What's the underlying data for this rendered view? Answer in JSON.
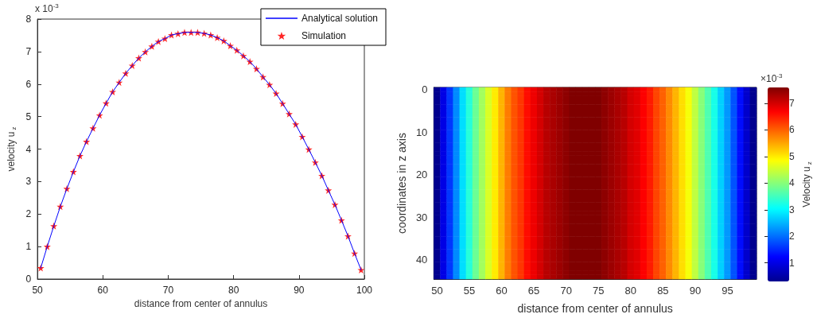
{
  "chart_data": [
    {
      "type": "line",
      "xlabel": "distance from center of annulus",
      "ylabel": "velocity u$_{z}$",
      "annotations": [
        "x 10$^{-3}$"
      ],
      "xlim": [
        50,
        100
      ],
      "xticks": [
        50,
        60,
        70,
        80,
        90,
        100
      ],
      "ylim": [
        0,
        8
      ],
      "yticks": [
        0,
        1,
        2,
        3,
        4,
        5,
        6,
        7,
        8
      ],
      "grid": false,
      "legend": "top right",
      "x": [
        50.5,
        51.5,
        52.5,
        53.5,
        54.5,
        55.5,
        56.5,
        57.5,
        58.5,
        59.5,
        60.5,
        61.5,
        62.5,
        63.5,
        64.5,
        65.5,
        66.5,
        67.5,
        68.5,
        69.5,
        70.5,
        71.5,
        72.5,
        73.5,
        74.5,
        75.5,
        76.5,
        77.5,
        78.5,
        79.5,
        80.5,
        81.5,
        82.5,
        83.5,
        84.5,
        85.5,
        86.5,
        87.5,
        88.5,
        89.5,
        90.5,
        91.5,
        92.5,
        93.5,
        94.5,
        95.5,
        96.5,
        97.5,
        98.5,
        99.5
      ],
      "series": [
        {
          "name": "Analytical solution",
          "type": "line",
          "color": "#0000ff",
          "line_style": "solid",
          "values": [
            0.34,
            1.0,
            1.63,
            2.23,
            2.78,
            3.3,
            3.79,
            4.23,
            4.64,
            5.04,
            5.41,
            5.76,
            6.05,
            6.33,
            6.57,
            6.8,
            6.99,
            7.16,
            7.31,
            7.4,
            7.51,
            7.55,
            7.59,
            7.59,
            7.59,
            7.56,
            7.51,
            7.43,
            7.33,
            7.18,
            7.04,
            6.87,
            6.69,
            6.47,
            6.22,
            5.98,
            5.71,
            5.4,
            5.08,
            4.76,
            4.38,
            3.99,
            3.59,
            3.18,
            2.73,
            2.29,
            1.81,
            1.32,
            0.79,
            0.28
          ]
        },
        {
          "name": "Simulation",
          "type": "scatter",
          "color": "#ff0000",
          "marker": "star",
          "values": [
            0.34,
            1.0,
            1.63,
            2.23,
            2.78,
            3.3,
            3.79,
            4.23,
            4.64,
            5.04,
            5.41,
            5.76,
            6.05,
            6.33,
            6.57,
            6.8,
            6.99,
            7.16,
            7.31,
            7.4,
            7.51,
            7.55,
            7.59,
            7.59,
            7.59,
            7.56,
            7.51,
            7.43,
            7.33,
            7.18,
            7.04,
            6.87,
            6.69,
            6.47,
            6.22,
            5.98,
            5.71,
            5.4,
            5.08,
            4.76,
            4.38,
            3.99,
            3.59,
            3.18,
            2.73,
            2.29,
            1.81,
            1.32,
            0.79,
            0.28
          ]
        }
      ]
    },
    {
      "type": "heatmap",
      "xlabel": "distance from center of annulus",
      "ylabel": "coordinates in z axis",
      "clabel": "Velocity u$_{z}$",
      "annotations": [
        "×10$^{-3}$"
      ],
      "clim": [
        0.3,
        7.6
      ],
      "cticks": [
        1,
        2,
        3,
        4,
        5,
        6,
        7
      ],
      "categories": [
        "50",
        null,
        null,
        null,
        null,
        "55",
        null,
        null,
        null,
        null,
        "60",
        null,
        null,
        null,
        null,
        "65",
        null,
        null,
        null,
        null,
        "70",
        null,
        null,
        null,
        null,
        "75",
        null,
        null,
        null,
        null,
        "80",
        null,
        null,
        null,
        null,
        "85",
        null,
        null,
        null,
        null,
        "90",
        null,
        null,
        null,
        null,
        "95",
        null,
        null,
        null,
        null
      ],
      "y_categories": [
        "0",
        null,
        null,
        null,
        null,
        null,
        null,
        null,
        null,
        null,
        "10",
        null,
        null,
        null,
        null,
        null,
        null,
        null,
        null,
        null,
        "20",
        null,
        null,
        null,
        null,
        null,
        null,
        null,
        null,
        null,
        "30",
        null,
        null,
        null,
        null,
        null,
        null,
        null,
        null,
        null,
        "40",
        null,
        null,
        null,
        null
      ],
      "cells": [
        [
          0.3,
          1.0,
          1.6,
          2.2,
          2.8,
          3.3,
          3.8,
          4.2,
          4.6,
          5.0,
          5.4,
          5.8,
          6.1,
          6.3,
          6.6,
          6.8,
          7.0,
          7.2,
          7.3,
          7.4,
          7.5,
          7.6,
          7.6,
          7.6,
          7.6,
          7.6,
          7.5,
          7.4,
          7.3,
          7.2,
          7.0,
          6.9,
          6.7,
          6.5,
          6.2,
          6.0,
          5.7,
          5.4,
          5.1,
          4.8,
          4.4,
          4.0,
          3.6,
          3.2,
          2.7,
          2.3,
          1.8,
          1.3,
          0.8,
          0.3
        ],
        [
          0.3,
          1.0,
          1.6,
          2.2,
          2.8,
          3.3,
          3.8,
          4.2,
          4.6,
          5.0,
          5.4,
          5.8,
          6.1,
          6.3,
          6.6,
          6.8,
          7.0,
          7.2,
          7.3,
          7.4,
          7.5,
          7.6,
          7.6,
          7.6,
          7.6,
          7.6,
          7.5,
          7.4,
          7.3,
          7.2,
          7.0,
          6.9,
          6.7,
          6.5,
          6.2,
          6.0,
          5.7,
          5.4,
          5.1,
          4.8,
          4.4,
          4.0,
          3.6,
          3.2,
          2.7,
          2.3,
          1.8,
          1.3,
          0.8,
          0.3
        ],
        [
          0.3,
          1.0,
          1.6,
          2.2,
          2.8,
          3.3,
          3.8,
          4.2,
          4.6,
          5.0,
          5.4,
          5.8,
          6.1,
          6.3,
          6.6,
          6.8,
          7.0,
          7.2,
          7.3,
          7.4,
          7.5,
          7.6,
          7.6,
          7.6,
          7.6,
          7.6,
          7.5,
          7.4,
          7.3,
          7.2,
          7.0,
          6.9,
          6.7,
          6.5,
          6.2,
          6.0,
          5.7,
          5.4,
          5.1,
          4.8,
          4.4,
          4.0,
          3.6,
          3.2,
          2.7,
          2.3,
          1.8,
          1.3,
          0.8,
          0.3
        ],
        [
          0.3,
          1.0,
          1.6,
          2.2,
          2.8,
          3.3,
          3.8,
          4.2,
          4.6,
          5.0,
          5.4,
          5.8,
          6.1,
          6.3,
          6.6,
          6.8,
          7.0,
          7.2,
          7.3,
          7.4,
          7.5,
          7.6,
          7.6,
          7.6,
          7.6,
          7.6,
          7.5,
          7.4,
          7.3,
          7.2,
          7.0,
          6.9,
          6.7,
          6.5,
          6.2,
          6.0,
          5.7,
          5.4,
          5.1,
          4.8,
          4.4,
          4.0,
          3.6,
          3.2,
          2.7,
          2.3,
          1.8,
          1.3,
          0.8,
          0.3
        ],
        [
          0.3,
          1.0,
          1.6,
          2.2,
          2.8,
          3.3,
          3.8,
          4.2,
          4.6,
          5.0,
          5.4,
          5.8,
          6.1,
          6.3,
          6.6,
          6.8,
          7.0,
          7.2,
          7.3,
          7.4,
          7.5,
          7.6,
          7.6,
          7.6,
          7.6,
          7.6,
          7.5,
          7.4,
          7.3,
          7.2,
          7.0,
          6.9,
          6.7,
          6.5,
          6.2,
          6.0,
          5.7,
          5.4,
          5.1,
          4.8,
          4.4,
          4.0,
          3.6,
          3.2,
          2.7,
          2.3,
          1.8,
          1.3,
          0.8,
          0.3
        ],
        [
          0.3,
          1.0,
          1.6,
          2.2,
          2.8,
          3.3,
          3.8,
          4.2,
          4.6,
          5.0,
          5.4,
          5.8,
          6.1,
          6.3,
          6.6,
          6.8,
          7.0,
          7.2,
          7.3,
          7.4,
          7.5,
          7.6,
          7.6,
          7.6,
          7.6,
          7.6,
          7.5,
          7.4,
          7.3,
          7.2,
          7.0,
          6.9,
          6.7,
          6.5,
          6.2,
          6.0,
          5.7,
          5.4,
          5.1,
          4.8,
          4.4,
          4.0,
          3.6,
          3.2,
          2.7,
          2.3,
          1.8,
          1.3,
          0.8,
          0.3
        ],
        [
          0.3,
          1.0,
          1.6,
          2.2,
          2.8,
          3.3,
          3.8,
          4.2,
          4.6,
          5.0,
          5.4,
          5.8,
          6.1,
          6.3,
          6.6,
          6.8,
          7.0,
          7.2,
          7.3,
          7.4,
          7.5,
          7.6,
          7.6,
          7.6,
          7.6,
          7.6,
          7.5,
          7.4,
          7.3,
          7.2,
          7.0,
          6.9,
          6.7,
          6.5,
          6.2,
          6.0,
          5.7,
          5.4,
          5.1,
          4.8,
          4.4,
          4.0,
          3.6,
          3.2,
          2.7,
          2.3,
          1.8,
          1.3,
          0.8,
          0.3
        ],
        [
          0.3,
          1.0,
          1.6,
          2.2,
          2.8,
          3.3,
          3.8,
          4.2,
          4.6,
          5.0,
          5.4,
          5.8,
          6.1,
          6.3,
          6.6,
          6.8,
          7.0,
          7.2,
          7.3,
          7.4,
          7.5,
          7.6,
          7.6,
          7.6,
          7.6,
          7.6,
          7.5,
          7.4,
          7.3,
          7.2,
          7.0,
          6.9,
          6.7,
          6.5,
          6.2,
          6.0,
          5.7,
          5.4,
          5.1,
          4.8,
          4.4,
          4.0,
          3.6,
          3.2,
          2.7,
          2.3,
          1.8,
          1.3,
          0.8,
          0.3
        ],
        [
          0.3,
          1.0,
          1.6,
          2.2,
          2.8,
          3.3,
          3.8,
          4.2,
          4.6,
          5.0,
          5.4,
          5.8,
          6.1,
          6.3,
          6.6,
          6.8,
          7.0,
          7.2,
          7.3,
          7.4,
          7.5,
          7.6,
          7.6,
          7.6,
          7.6,
          7.6,
          7.5,
          7.4,
          7.3,
          7.2,
          7.0,
          6.9,
          6.7,
          6.5,
          6.2,
          6.0,
          5.7,
          5.4,
          5.1,
          4.8,
          4.4,
          4.0,
          3.6,
          3.2,
          2.7,
          2.3,
          1.8,
          1.3,
          0.8,
          0.3
        ],
        [
          0.3,
          1.0,
          1.6,
          2.2,
          2.8,
          3.3,
          3.8,
          4.2,
          4.6,
          5.0,
          5.4,
          5.8,
          6.1,
          6.3,
          6.6,
          6.8,
          7.0,
          7.2,
          7.3,
          7.4,
          7.5,
          7.6,
          7.6,
          7.6,
          7.6,
          7.6,
          7.5,
          7.4,
          7.3,
          7.2,
          7.0,
          6.9,
          6.7,
          6.5,
          6.2,
          6.0,
          5.7,
          5.4,
          5.1,
          4.8,
          4.4,
          4.0,
          3.6,
          3.2,
          2.7,
          2.3,
          1.8,
          1.3,
          0.8,
          0.3
        ],
        [
          0.3,
          1.0,
          1.6,
          2.2,
          2.8,
          3.3,
          3.8,
          4.2,
          4.6,
          5.0,
          5.4,
          5.8,
          6.1,
          6.3,
          6.6,
          6.8,
          7.0,
          7.2,
          7.3,
          7.4,
          7.5,
          7.6,
          7.6,
          7.6,
          7.6,
          7.6,
          7.5,
          7.4,
          7.3,
          7.2,
          7.0,
          6.9,
          6.7,
          6.5,
          6.2,
          6.0,
          5.7,
          5.4,
          5.1,
          4.8,
          4.4,
          4.0,
          3.6,
          3.2,
          2.7,
          2.3,
          1.8,
          1.3,
          0.8,
          0.3
        ],
        [
          0.3,
          1.0,
          1.6,
          2.2,
          2.8,
          3.3,
          3.8,
          4.2,
          4.6,
          5.0,
          5.4,
          5.8,
          6.1,
          6.3,
          6.6,
          6.8,
          7.0,
          7.2,
          7.3,
          7.4,
          7.5,
          7.6,
          7.6,
          7.6,
          7.6,
          7.6,
          7.5,
          7.4,
          7.3,
          7.2,
          7.0,
          6.9,
          6.7,
          6.5,
          6.2,
          6.0,
          5.7,
          5.4,
          5.1,
          4.8,
          4.4,
          4.0,
          3.6,
          3.2,
          2.7,
          2.3,
          1.8,
          1.3,
          0.8,
          0.3
        ],
        [
          0.3,
          1.0,
          1.6,
          2.2,
          2.8,
          3.3,
          3.8,
          4.2,
          4.6,
          5.0,
          5.4,
          5.8,
          6.1,
          6.3,
          6.6,
          6.8,
          7.0,
          7.2,
          7.3,
          7.4,
          7.5,
          7.6,
          7.6,
          7.6,
          7.6,
          7.6,
          7.5,
          7.4,
          7.3,
          7.2,
          7.0,
          6.9,
          6.7,
          6.5,
          6.2,
          6.0,
          5.7,
          5.4,
          5.1,
          4.8,
          4.4,
          4.0,
          3.6,
          3.2,
          2.7,
          2.3,
          1.8,
          1.3,
          0.8,
          0.3
        ],
        [
          0.3,
          1.0,
          1.6,
          2.2,
          2.8,
          3.3,
          3.8,
          4.2,
          4.6,
          5.0,
          5.4,
          5.8,
          6.1,
          6.3,
          6.6,
          6.8,
          7.0,
          7.2,
          7.3,
          7.4,
          7.5,
          7.6,
          7.6,
          7.6,
          7.6,
          7.6,
          7.5,
          7.4,
          7.3,
          7.2,
          7.0,
          6.9,
          6.7,
          6.5,
          6.2,
          6.0,
          5.7,
          5.4,
          5.1,
          4.8,
          4.4,
          4.0,
          3.6,
          3.2,
          2.7,
          2.3,
          1.8,
          1.3,
          0.8,
          0.3
        ],
        [
          0.3,
          1.0,
          1.6,
          2.2,
          2.8,
          3.3,
          3.8,
          4.2,
          4.6,
          5.0,
          5.4,
          5.8,
          6.1,
          6.3,
          6.6,
          6.8,
          7.0,
          7.2,
          7.3,
          7.4,
          7.5,
          7.6,
          7.6,
          7.6,
          7.6,
          7.6,
          7.5,
          7.4,
          7.3,
          7.2,
          7.0,
          6.9,
          6.7,
          6.5,
          6.2,
          6.0,
          5.7,
          5.4,
          5.1,
          4.8,
          4.4,
          4.0,
          3.6,
          3.2,
          2.7,
          2.3,
          1.8,
          1.3,
          0.8,
          0.3
        ],
        [
          0.3,
          1.0,
          1.6,
          2.2,
          2.8,
          3.3,
          3.8,
          4.2,
          4.6,
          5.0,
          5.4,
          5.8,
          6.1,
          6.3,
          6.6,
          6.8,
          7.0,
          7.2,
          7.3,
          7.4,
          7.5,
          7.6,
          7.6,
          7.6,
          7.6,
          7.6,
          7.5,
          7.4,
          7.3,
          7.2,
          7.0,
          6.9,
          6.7,
          6.5,
          6.2,
          6.0,
          5.7,
          5.4,
          5.1,
          4.8,
          4.4,
          4.0,
          3.6,
          3.2,
          2.7,
          2.3,
          1.8,
          1.3,
          0.8,
          0.3
        ],
        [
          0.3,
          1.0,
          1.6,
          2.2,
          2.8,
          3.3,
          3.8,
          4.2,
          4.6,
          5.0,
          5.4,
          5.8,
          6.1,
          6.3,
          6.6,
          6.8,
          7.0,
          7.2,
          7.3,
          7.4,
          7.5,
          7.6,
          7.6,
          7.6,
          7.6,
          7.6,
          7.5,
          7.4,
          7.3,
          7.2,
          7.0,
          6.9,
          6.7,
          6.5,
          6.2,
          6.0,
          5.7,
          5.4,
          5.1,
          4.8,
          4.4,
          4.0,
          3.6,
          3.2,
          2.7,
          2.3,
          1.8,
          1.3,
          0.8,
          0.3
        ],
        [
          0.3,
          1.0,
          1.6,
          2.2,
          2.8,
          3.3,
          3.8,
          4.2,
          4.6,
          5.0,
          5.4,
          5.8,
          6.1,
          6.3,
          6.6,
          6.8,
          7.0,
          7.2,
          7.3,
          7.4,
          7.5,
          7.6,
          7.6,
          7.6,
          7.6,
          7.6,
          7.5,
          7.4,
          7.3,
          7.2,
          7.0,
          6.9,
          6.7,
          6.5,
          6.2,
          6.0,
          5.7,
          5.4,
          5.1,
          4.8,
          4.4,
          4.0,
          3.6,
          3.2,
          2.7,
          2.3,
          1.8,
          1.3,
          0.8,
          0.3
        ],
        [
          0.3,
          1.0,
          1.6,
          2.2,
          2.8,
          3.3,
          3.8,
          4.2,
          4.6,
          5.0,
          5.4,
          5.8,
          6.1,
          6.3,
          6.6,
          6.8,
          7.0,
          7.2,
          7.3,
          7.4,
          7.5,
          7.6,
          7.6,
          7.6,
          7.6,
          7.6,
          7.5,
          7.4,
          7.3,
          7.2,
          7.0,
          6.9,
          6.7,
          6.5,
          6.2,
          6.0,
          5.7,
          5.4,
          5.1,
          4.8,
          4.4,
          4.0,
          3.6,
          3.2,
          2.7,
          2.3,
          1.8,
          1.3,
          0.8,
          0.3
        ],
        [
          0.3,
          1.0,
          1.6,
          2.2,
          2.8,
          3.3,
          3.8,
          4.2,
          4.6,
          5.0,
          5.4,
          5.8,
          6.1,
          6.3,
          6.6,
          6.8,
          7.0,
          7.2,
          7.3,
          7.4,
          7.5,
          7.6,
          7.6,
          7.6,
          7.6,
          7.6,
          7.5,
          7.4,
          7.3,
          7.2,
          7.0,
          6.9,
          6.7,
          6.5,
          6.2,
          6.0,
          5.7,
          5.4,
          5.1,
          4.8,
          4.4,
          4.0,
          3.6,
          3.2,
          2.7,
          2.3,
          1.8,
          1.3,
          0.8,
          0.3
        ],
        [
          0.3,
          1.0,
          1.6,
          2.2,
          2.8,
          3.3,
          3.8,
          4.2,
          4.6,
          5.0,
          5.4,
          5.8,
          6.1,
          6.3,
          6.6,
          6.8,
          7.0,
          7.2,
          7.3,
          7.4,
          7.5,
          7.6,
          7.6,
          7.6,
          7.6,
          7.6,
          7.5,
          7.4,
          7.3,
          7.2,
          7.0,
          6.9,
          6.7,
          6.5,
          6.2,
          6.0,
          5.7,
          5.4,
          5.1,
          4.8,
          4.4,
          4.0,
          3.6,
          3.2,
          2.7,
          2.3,
          1.8,
          1.3,
          0.8,
          0.3
        ],
        [
          0.3,
          1.0,
          1.6,
          2.2,
          2.8,
          3.3,
          3.8,
          4.2,
          4.6,
          5.0,
          5.4,
          5.8,
          6.1,
          6.3,
          6.6,
          6.8,
          7.0,
          7.2,
          7.3,
          7.4,
          7.5,
          7.6,
          7.6,
          7.6,
          7.6,
          7.6,
          7.5,
          7.4,
          7.3,
          7.2,
          7.0,
          6.9,
          6.7,
          6.5,
          6.2,
          6.0,
          5.7,
          5.4,
          5.1,
          4.8,
          4.4,
          4.0,
          3.6,
          3.2,
          2.7,
          2.3,
          1.8,
          1.3,
          0.8,
          0.3
        ],
        [
          0.3,
          1.0,
          1.6,
          2.2,
          2.8,
          3.3,
          3.8,
          4.2,
          4.6,
          5.0,
          5.4,
          5.8,
          6.1,
          6.3,
          6.6,
          6.8,
          7.0,
          7.2,
          7.3,
          7.4,
          7.5,
          7.6,
          7.6,
          7.6,
          7.6,
          7.6,
          7.5,
          7.4,
          7.3,
          7.2,
          7.0,
          6.9,
          6.7,
          6.5,
          6.2,
          6.0,
          5.7,
          5.4,
          5.1,
          4.8,
          4.4,
          4.0,
          3.6,
          3.2,
          2.7,
          2.3,
          1.8,
          1.3,
          0.8,
          0.3
        ],
        [
          0.3,
          1.0,
          1.6,
          2.2,
          2.8,
          3.3,
          3.8,
          4.2,
          4.6,
          5.0,
          5.4,
          5.8,
          6.1,
          6.3,
          6.6,
          6.8,
          7.0,
          7.2,
          7.3,
          7.4,
          7.5,
          7.6,
          7.6,
          7.6,
          7.6,
          7.6,
          7.5,
          7.4,
          7.3,
          7.2,
          7.0,
          6.9,
          6.7,
          6.5,
          6.2,
          6.0,
          5.7,
          5.4,
          5.1,
          4.8,
          4.4,
          4.0,
          3.6,
          3.2,
          2.7,
          2.3,
          1.8,
          1.3,
          0.8,
          0.3
        ],
        [
          0.3,
          1.0,
          1.6,
          2.2,
          2.8,
          3.3,
          3.8,
          4.2,
          4.6,
          5.0,
          5.4,
          5.8,
          6.1,
          6.3,
          6.6,
          6.8,
          7.0,
          7.2,
          7.3,
          7.4,
          7.5,
          7.6,
          7.6,
          7.6,
          7.6,
          7.6,
          7.5,
          7.4,
          7.3,
          7.2,
          7.0,
          6.9,
          6.7,
          6.5,
          6.2,
          6.0,
          5.7,
          5.4,
          5.1,
          4.8,
          4.4,
          4.0,
          3.6,
          3.2,
          2.7,
          2.3,
          1.8,
          1.3,
          0.8,
          0.3
        ],
        [
          0.3,
          1.0,
          1.6,
          2.2,
          2.8,
          3.3,
          3.8,
          4.2,
          4.6,
          5.0,
          5.4,
          5.8,
          6.1,
          6.3,
          6.6,
          6.8,
          7.0,
          7.2,
          7.3,
          7.4,
          7.5,
          7.6,
          7.6,
          7.6,
          7.6,
          7.6,
          7.5,
          7.4,
          7.3,
          7.2,
          7.0,
          6.9,
          6.7,
          6.5,
          6.2,
          6.0,
          5.7,
          5.4,
          5.1,
          4.8,
          4.4,
          4.0,
          3.6,
          3.2,
          2.7,
          2.3,
          1.8,
          1.3,
          0.8,
          0.3
        ],
        [
          0.3,
          1.0,
          1.6,
          2.2,
          2.8,
          3.3,
          3.8,
          4.2,
          4.6,
          5.0,
          5.4,
          5.8,
          6.1,
          6.3,
          6.6,
          6.8,
          7.0,
          7.2,
          7.3,
          7.4,
          7.5,
          7.6,
          7.6,
          7.6,
          7.6,
          7.6,
          7.5,
          7.4,
          7.3,
          7.2,
          7.0,
          6.9,
          6.7,
          6.5,
          6.2,
          6.0,
          5.7,
          5.4,
          5.1,
          4.8,
          4.4,
          4.0,
          3.6,
          3.2,
          2.7,
          2.3,
          1.8,
          1.3,
          0.8,
          0.3
        ],
        [
          0.3,
          1.0,
          1.6,
          2.2,
          2.8,
          3.3,
          3.8,
          4.2,
          4.6,
          5.0,
          5.4,
          5.8,
          6.1,
          6.3,
          6.6,
          6.8,
          7.0,
          7.2,
          7.3,
          7.4,
          7.5,
          7.6,
          7.6,
          7.6,
          7.6,
          7.6,
          7.5,
          7.4,
          7.3,
          7.2,
          7.0,
          6.9,
          6.7,
          6.5,
          6.2,
          6.0,
          5.7,
          5.4,
          5.1,
          4.8,
          4.4,
          4.0,
          3.6,
          3.2,
          2.7,
          2.3,
          1.8,
          1.3,
          0.8,
          0.3
        ],
        [
          0.3,
          1.0,
          1.6,
          2.2,
          2.8,
          3.3,
          3.8,
          4.2,
          4.6,
          5.0,
          5.4,
          5.8,
          6.1,
          6.3,
          6.6,
          6.8,
          7.0,
          7.2,
          7.3,
          7.4,
          7.5,
          7.6,
          7.6,
          7.6,
          7.6,
          7.6,
          7.5,
          7.4,
          7.3,
          7.2,
          7.0,
          6.9,
          6.7,
          6.5,
          6.2,
          6.0,
          5.7,
          5.4,
          5.1,
          4.8,
          4.4,
          4.0,
          3.6,
          3.2,
          2.7,
          2.3,
          1.8,
          1.3,
          0.8,
          0.3
        ],
        [
          0.3,
          1.0,
          1.6,
          2.2,
          2.8,
          3.3,
          3.8,
          4.2,
          4.6,
          5.0,
          5.4,
          5.8,
          6.1,
          6.3,
          6.6,
          6.8,
          7.0,
          7.2,
          7.3,
          7.4,
          7.5,
          7.6,
          7.6,
          7.6,
          7.6,
          7.6,
          7.5,
          7.4,
          7.3,
          7.2,
          7.0,
          6.9,
          6.7,
          6.5,
          6.2,
          6.0,
          5.7,
          5.4,
          5.1,
          4.8,
          4.4,
          4.0,
          3.6,
          3.2,
          2.7,
          2.3,
          1.8,
          1.3,
          0.8,
          0.3
        ],
        [
          0.3,
          1.0,
          1.6,
          2.2,
          2.8,
          3.3,
          3.8,
          4.2,
          4.6,
          5.0,
          5.4,
          5.8,
          6.1,
          6.3,
          6.6,
          6.8,
          7.0,
          7.2,
          7.3,
          7.4,
          7.5,
          7.6,
          7.6,
          7.6,
          7.6,
          7.6,
          7.5,
          7.4,
          7.3,
          7.2,
          7.0,
          6.9,
          6.7,
          6.5,
          6.2,
          6.0,
          5.7,
          5.4,
          5.1,
          4.8,
          4.4,
          4.0,
          3.6,
          3.2,
          2.7,
          2.3,
          1.8,
          1.3,
          0.8,
          0.3
        ],
        [
          0.3,
          1.0,
          1.6,
          2.2,
          2.8,
          3.3,
          3.8,
          4.2,
          4.6,
          5.0,
          5.4,
          5.8,
          6.1,
          6.3,
          6.6,
          6.8,
          7.0,
          7.2,
          7.3,
          7.4,
          7.5,
          7.6,
          7.6,
          7.6,
          7.6,
          7.6,
          7.5,
          7.4,
          7.3,
          7.2,
          7.0,
          6.9,
          6.7,
          6.5,
          6.2,
          6.0,
          5.7,
          5.4,
          5.1,
          4.8,
          4.4,
          4.0,
          3.6,
          3.2,
          2.7,
          2.3,
          1.8,
          1.3,
          0.8,
          0.3
        ],
        [
          0.3,
          1.0,
          1.6,
          2.2,
          2.8,
          3.3,
          3.8,
          4.2,
          4.6,
          5.0,
          5.4,
          5.8,
          6.1,
          6.3,
          6.6,
          6.8,
          7.0,
          7.2,
          7.3,
          7.4,
          7.5,
          7.6,
          7.6,
          7.6,
          7.6,
          7.6,
          7.5,
          7.4,
          7.3,
          7.2,
          7.0,
          6.9,
          6.7,
          6.5,
          6.2,
          6.0,
          5.7,
          5.4,
          5.1,
          4.8,
          4.4,
          4.0,
          3.6,
          3.2,
          2.7,
          2.3,
          1.8,
          1.3,
          0.8,
          0.3
        ],
        [
          0.3,
          1.0,
          1.6,
          2.2,
          2.8,
          3.3,
          3.8,
          4.2,
          4.6,
          5.0,
          5.4,
          5.8,
          6.1,
          6.3,
          6.6,
          6.8,
          7.0,
          7.2,
          7.3,
          7.4,
          7.5,
          7.6,
          7.6,
          7.6,
          7.6,
          7.6,
          7.5,
          7.4,
          7.3,
          7.2,
          7.0,
          6.9,
          6.7,
          6.5,
          6.2,
          6.0,
          5.7,
          5.4,
          5.1,
          4.8,
          4.4,
          4.0,
          3.6,
          3.2,
          2.7,
          2.3,
          1.8,
          1.3,
          0.8,
          0.3
        ],
        [
          0.3,
          1.0,
          1.6,
          2.2,
          2.8,
          3.3,
          3.8,
          4.2,
          4.6,
          5.0,
          5.4,
          5.8,
          6.1,
          6.3,
          6.6,
          6.8,
          7.0,
          7.2,
          7.3,
          7.4,
          7.5,
          7.6,
          7.6,
          7.6,
          7.6,
          7.6,
          7.5,
          7.4,
          7.3,
          7.2,
          7.0,
          6.9,
          6.7,
          6.5,
          6.2,
          6.0,
          5.7,
          5.4,
          5.1,
          4.8,
          4.4,
          4.0,
          3.6,
          3.2,
          2.7,
          2.3,
          1.8,
          1.3,
          0.8,
          0.3
        ],
        [
          0.3,
          1.0,
          1.6,
          2.2,
          2.8,
          3.3,
          3.8,
          4.2,
          4.6,
          5.0,
          5.4,
          5.8,
          6.1,
          6.3,
          6.6,
          6.8,
          7.0,
          7.2,
          7.3,
          7.4,
          7.5,
          7.6,
          7.6,
          7.6,
          7.6,
          7.6,
          7.5,
          7.4,
          7.3,
          7.2,
          7.0,
          6.9,
          6.7,
          6.5,
          6.2,
          6.0,
          5.7,
          5.4,
          5.1,
          4.8,
          4.4,
          4.0,
          3.6,
          3.2,
          2.7,
          2.3,
          1.8,
          1.3,
          0.8,
          0.3
        ],
        [
          0.3,
          1.0,
          1.6,
          2.2,
          2.8,
          3.3,
          3.8,
          4.2,
          4.6,
          5.0,
          5.4,
          5.8,
          6.1,
          6.3,
          6.6,
          6.8,
          7.0,
          7.2,
          7.3,
          7.4,
          7.5,
          7.6,
          7.6,
          7.6,
          7.6,
          7.6,
          7.5,
          7.4,
          7.3,
          7.2,
          7.0,
          6.9,
          6.7,
          6.5,
          6.2,
          6.0,
          5.7,
          5.4,
          5.1,
          4.8,
          4.4,
          4.0,
          3.6,
          3.2,
          2.7,
          2.3,
          1.8,
          1.3,
          0.8,
          0.3
        ],
        [
          0.3,
          1.0,
          1.6,
          2.2,
          2.8,
          3.3,
          3.8,
          4.2,
          4.6,
          5.0,
          5.4,
          5.8,
          6.1,
          6.3,
          6.6,
          6.8,
          7.0,
          7.2,
          7.3,
          7.4,
          7.5,
          7.6,
          7.6,
          7.6,
          7.6,
          7.6,
          7.5,
          7.4,
          7.3,
          7.2,
          7.0,
          6.9,
          6.7,
          6.5,
          6.2,
          6.0,
          5.7,
          5.4,
          5.1,
          4.8,
          4.4,
          4.0,
          3.6,
          3.2,
          2.7,
          2.3,
          1.8,
          1.3,
          0.8,
          0.3
        ],
        [
          0.3,
          1.0,
          1.6,
          2.2,
          2.8,
          3.3,
          3.8,
          4.2,
          4.6,
          5.0,
          5.4,
          5.8,
          6.1,
          6.3,
          6.6,
          6.8,
          7.0,
          7.2,
          7.3,
          7.4,
          7.5,
          7.6,
          7.6,
          7.6,
          7.6,
          7.6,
          7.5,
          7.4,
          7.3,
          7.2,
          7.0,
          6.9,
          6.7,
          6.5,
          6.2,
          6.0,
          5.7,
          5.4,
          5.1,
          4.8,
          4.4,
          4.0,
          3.6,
          3.2,
          2.7,
          2.3,
          1.8,
          1.3,
          0.8,
          0.3
        ],
        [
          0.3,
          1.0,
          1.6,
          2.2,
          2.8,
          3.3,
          3.8,
          4.2,
          4.6,
          5.0,
          5.4,
          5.8,
          6.1,
          6.3,
          6.6,
          6.8,
          7.0,
          7.2,
          7.3,
          7.4,
          7.5,
          7.6,
          7.6,
          7.6,
          7.6,
          7.6,
          7.5,
          7.4,
          7.3,
          7.2,
          7.0,
          6.9,
          6.7,
          6.5,
          6.2,
          6.0,
          5.7,
          5.4,
          5.1,
          4.8,
          4.4,
          4.0,
          3.6,
          3.2,
          2.7,
          2.3,
          1.8,
          1.3,
          0.8,
          0.3
        ],
        [
          0.3,
          1.0,
          1.6,
          2.2,
          2.8,
          3.3,
          3.8,
          4.2,
          4.6,
          5.0,
          5.4,
          5.8,
          6.1,
          6.3,
          6.6,
          6.8,
          7.0,
          7.2,
          7.3,
          7.4,
          7.5,
          7.6,
          7.6,
          7.6,
          7.6,
          7.6,
          7.5,
          7.4,
          7.3,
          7.2,
          7.0,
          6.9,
          6.7,
          6.5,
          6.2,
          6.0,
          5.7,
          5.4,
          5.1,
          4.8,
          4.4,
          4.0,
          3.6,
          3.2,
          2.7,
          2.3,
          1.8,
          1.3,
          0.8,
          0.3
        ],
        [
          0.3,
          1.0,
          1.6,
          2.2,
          2.8,
          3.3,
          3.8,
          4.2,
          4.6,
          5.0,
          5.4,
          5.8,
          6.1,
          6.3,
          6.6,
          6.8,
          7.0,
          7.2,
          7.3,
          7.4,
          7.5,
          7.6,
          7.6,
          7.6,
          7.6,
          7.6,
          7.5,
          7.4,
          7.3,
          7.2,
          7.0,
          6.9,
          6.7,
          6.5,
          6.2,
          6.0,
          5.7,
          5.4,
          5.1,
          4.8,
          4.4,
          4.0,
          3.6,
          3.2,
          2.7,
          2.3,
          1.8,
          1.3,
          0.8,
          0.3
        ],
        [
          0.3,
          1.0,
          1.6,
          2.2,
          2.8,
          3.3,
          3.8,
          4.2,
          4.6,
          5.0,
          5.4,
          5.8,
          6.1,
          6.3,
          6.6,
          6.8,
          7.0,
          7.2,
          7.3,
          7.4,
          7.5,
          7.6,
          7.6,
          7.6,
          7.6,
          7.6,
          7.5,
          7.4,
          7.3,
          7.2,
          7.0,
          6.9,
          6.7,
          6.5,
          6.2,
          6.0,
          5.7,
          5.4,
          5.1,
          4.8,
          4.4,
          4.0,
          3.6,
          3.2,
          2.7,
          2.3,
          1.8,
          1.3,
          0.8,
          0.3
        ],
        [
          0.3,
          1.0,
          1.6,
          2.2,
          2.8,
          3.3,
          3.8,
          4.2,
          4.6,
          5.0,
          5.4,
          5.8,
          6.1,
          6.3,
          6.6,
          6.8,
          7.0,
          7.2,
          7.3,
          7.4,
          7.5,
          7.6,
          7.6,
          7.6,
          7.6,
          7.6,
          7.5,
          7.4,
          7.3,
          7.2,
          7.0,
          6.9,
          6.7,
          6.5,
          6.2,
          6.0,
          5.7,
          5.4,
          5.1,
          4.8,
          4.4,
          4.0,
          3.6,
          3.2,
          2.7,
          2.3,
          1.8,
          1.3,
          0.8,
          0.3
        ],
        [
          0.3,
          1.0,
          1.6,
          2.2,
          2.8,
          3.3,
          3.8,
          4.2,
          4.6,
          5.0,
          5.4,
          5.8,
          6.1,
          6.3,
          6.6,
          6.8,
          7.0,
          7.2,
          7.3,
          7.4,
          7.5,
          7.6,
          7.6,
          7.6,
          7.6,
          7.6,
          7.5,
          7.4,
          7.3,
          7.2,
          7.0,
          6.9,
          6.7,
          6.5,
          6.2,
          6.0,
          5.7,
          5.4,
          5.1,
          4.8,
          4.4,
          4.0,
          3.6,
          3.2,
          2.7,
          2.3,
          1.8,
          1.3,
          0.8,
          0.3
        ]
      ]
    }
  ]
}
